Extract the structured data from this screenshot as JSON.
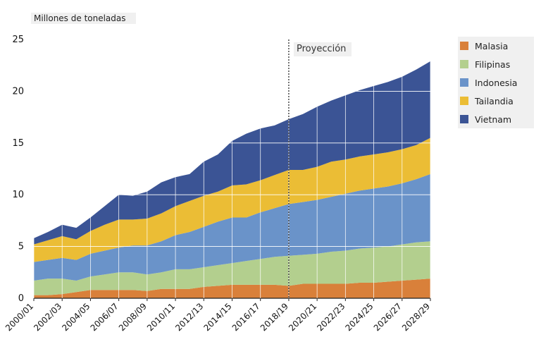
{
  "chart_data": {
    "type": "area",
    "stacked": true,
    "y_unit_label": "Millones de toneladas",
    "projection_label": "Proyección",
    "projection_start": "2018/19",
    "ylim": [
      0,
      25
    ],
    "yticks": [
      0,
      5,
      10,
      15,
      20,
      25
    ],
    "x_tick_labels": [
      "2000/01",
      "2002/03",
      "2004/05",
      "2006/07",
      "2008/09",
      "2010/11",
      "2012/13",
      "2014/15",
      "2016/17",
      "2018/19",
      "2020/21",
      "2022/23",
      "2024/25",
      "2026/27",
      "2028/29"
    ],
    "categories": [
      "2000/01",
      "2001/02",
      "2002/03",
      "2003/04",
      "2004/05",
      "2005/06",
      "2006/07",
      "2007/08",
      "2008/09",
      "2009/10",
      "2010/11",
      "2011/12",
      "2012/13",
      "2013/14",
      "2014/15",
      "2015/16",
      "2016/17",
      "2017/18",
      "2018/19",
      "2019/20",
      "2020/21",
      "2021/22",
      "2022/23",
      "2023/24",
      "2024/25",
      "2025/26",
      "2026/27",
      "2027/28",
      "2028/29"
    ],
    "legend_position": "right",
    "series": [
      {
        "name": "Malasia",
        "color": "#d9803a",
        "values": [
          0.3,
          0.3,
          0.4,
          0.6,
          0.8,
          0.8,
          0.8,
          0.8,
          0.7,
          0.9,
          0.9,
          0.9,
          1.1,
          1.2,
          1.3,
          1.3,
          1.3,
          1.3,
          1.2,
          1.4,
          1.4,
          1.4,
          1.4,
          1.5,
          1.5,
          1.6,
          1.7,
          1.8,
          1.9
        ]
      },
      {
        "name": "Filipinas",
        "color": "#b3cf8e",
        "values": [
          1.4,
          1.6,
          1.5,
          1.1,
          1.3,
          1.5,
          1.7,
          1.7,
          1.6,
          1.6,
          1.9,
          1.9,
          1.9,
          2.0,
          2.1,
          2.3,
          2.5,
          2.7,
          2.9,
          2.8,
          2.9,
          3.1,
          3.2,
          3.3,
          3.4,
          3.4,
          3.5,
          3.6,
          3.6
        ]
      },
      {
        "name": "Indonesia",
        "color": "#6a93c9",
        "values": [
          1.8,
          1.8,
          2.0,
          2.0,
          2.2,
          2.3,
          2.4,
          2.6,
          2.8,
          3.0,
          3.3,
          3.6,
          3.9,
          4.2,
          4.4,
          4.2,
          4.5,
          4.7,
          5.0,
          5.1,
          5.2,
          5.3,
          5.5,
          5.6,
          5.7,
          5.8,
          5.9,
          6.1,
          6.5
        ]
      },
      {
        "name": "Tailandia",
        "color": "#ebbd35",
        "values": [
          1.7,
          1.9,
          2.1,
          2.0,
          2.2,
          2.5,
          2.7,
          2.5,
          2.6,
          2.7,
          2.8,
          3.0,
          3.0,
          2.9,
          3.1,
          3.2,
          3.1,
          3.2,
          3.3,
          3.1,
          3.2,
          3.4,
          3.3,
          3.3,
          3.3,
          3.3,
          3.3,
          3.3,
          3.5
        ]
      },
      {
        "name": "Vietnam",
        "color": "#3b5495",
        "values": [
          0.6,
          0.8,
          1.1,
          1.1,
          1.3,
          1.8,
          2.4,
          2.3,
          2.6,
          3.0,
          2.8,
          2.6,
          3.3,
          3.6,
          4.3,
          4.9,
          5.0,
          4.8,
          4.9,
          5.4,
          5.8,
          5.9,
          6.2,
          6.4,
          6.6,
          6.8,
          7.0,
          7.3,
          7.4
        ]
      }
    ]
  }
}
